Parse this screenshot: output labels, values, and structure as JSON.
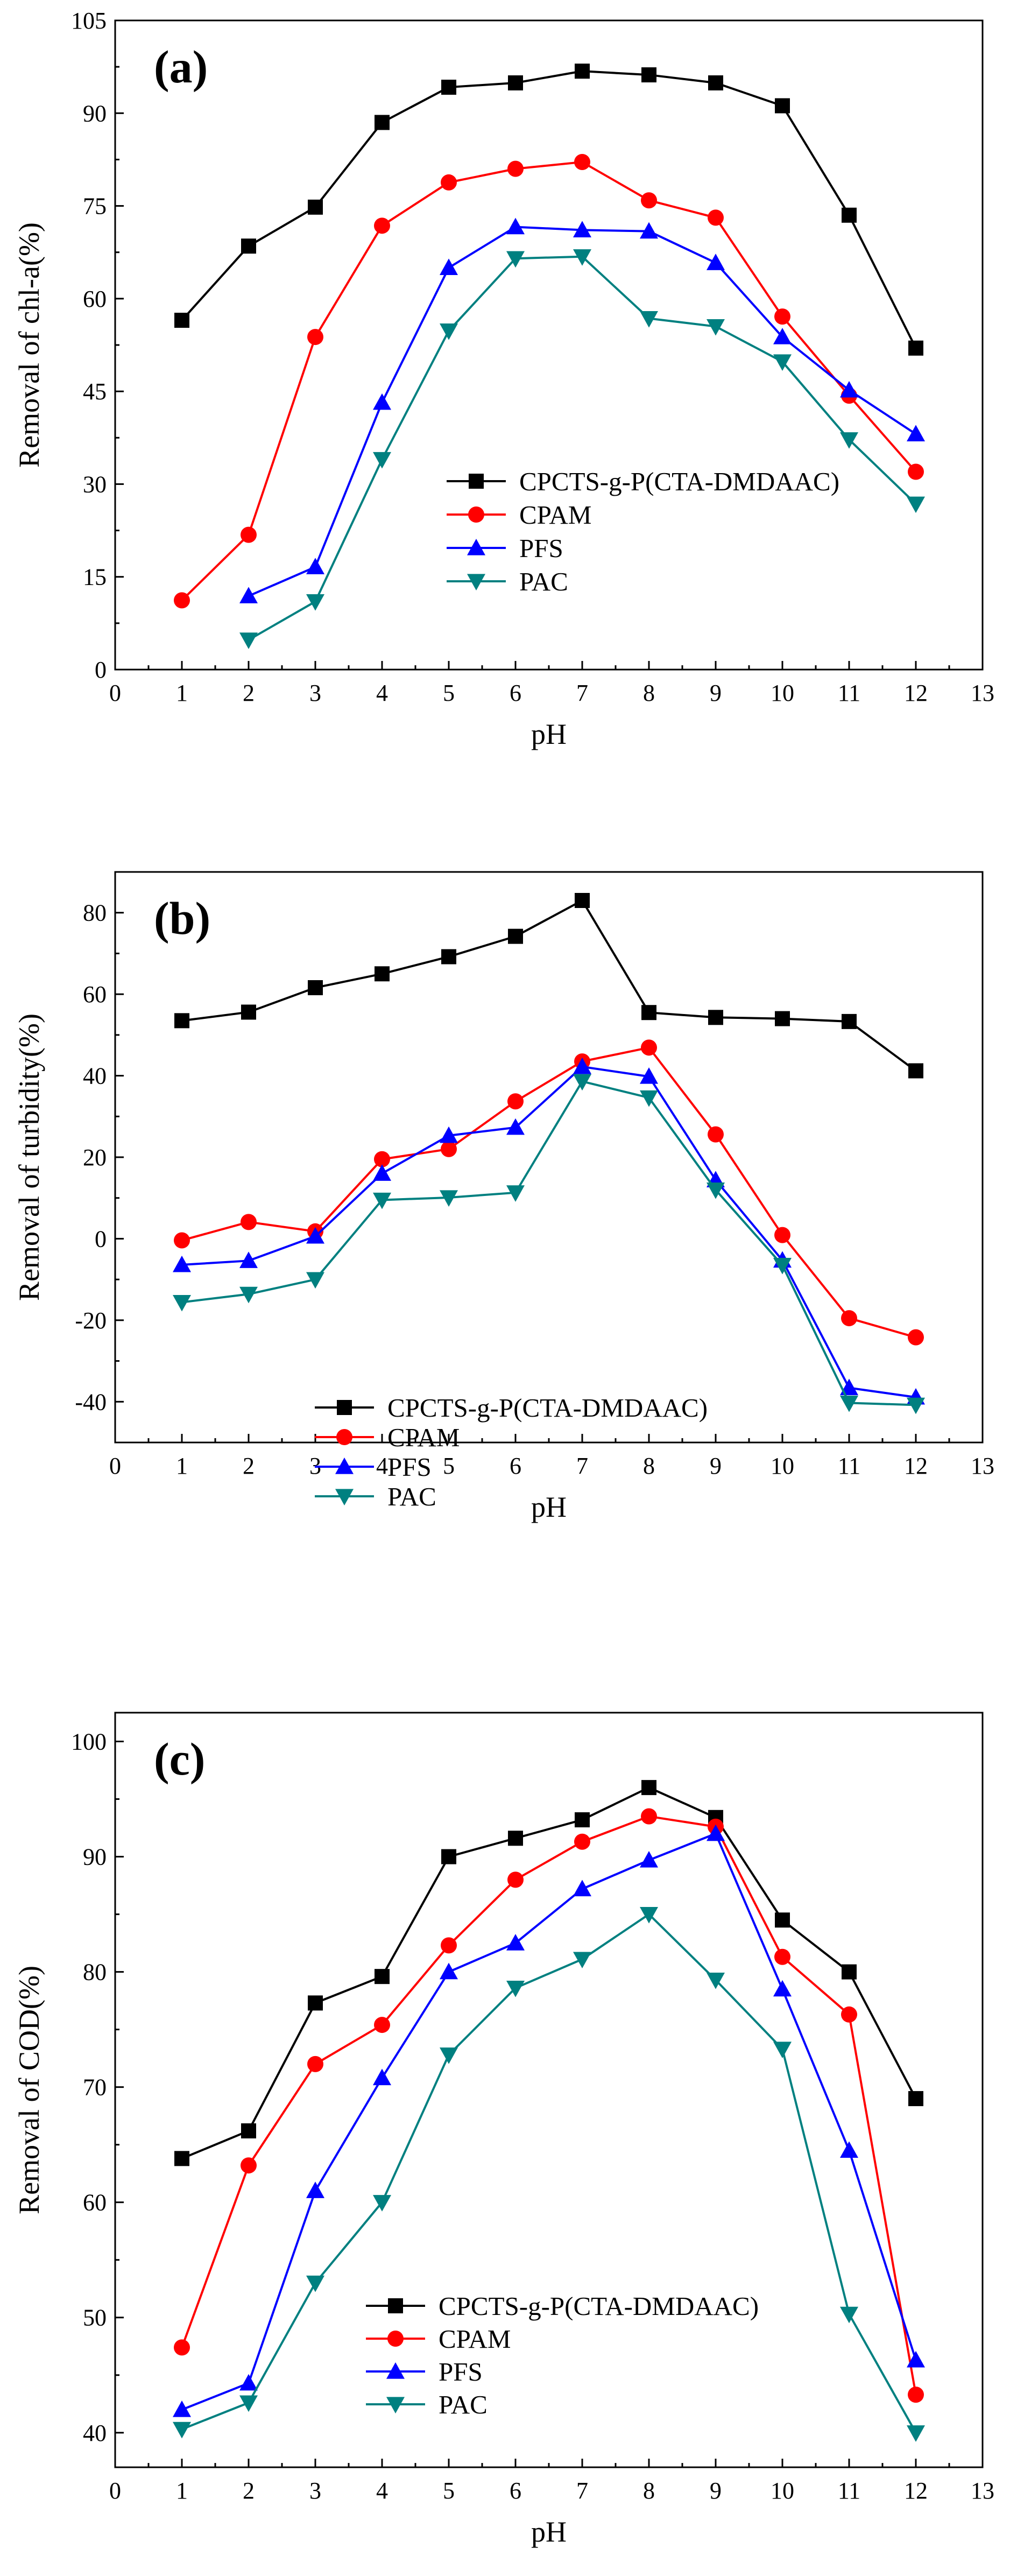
{
  "chart_data": [
    {
      "type": "line",
      "panel_label": "(a)",
      "xlabel": "pH",
      "ylabel": "Removal of chl-a(%)",
      "xlim": [
        0,
        13
      ],
      "ylim": [
        0,
        105
      ],
      "xticks": [
        0,
        1,
        2,
        3,
        4,
        5,
        6,
        7,
        8,
        9,
        10,
        11,
        12,
        13
      ],
      "yticks": [
        0,
        15,
        30,
        45,
        60,
        75,
        90,
        105
      ],
      "legend_position": "lower-center",
      "series": [
        {
          "name": "CPCTS-g-P(CTA-DMDAAC)",
          "color": "#000000",
          "marker": "square",
          "x": [
            1,
            2,
            3,
            4,
            5,
            6,
            7,
            8,
            9,
            10,
            11,
            12
          ],
          "y": [
            56.5,
            68.5,
            74.8,
            88.5,
            94.2,
            94.9,
            96.8,
            96.2,
            94.9,
            91.2,
            73.5,
            52.0
          ]
        },
        {
          "name": "CPAM",
          "color": "#ff0000",
          "marker": "circle",
          "x": [
            1,
            2,
            3,
            4,
            5,
            6,
            7,
            8,
            9,
            10,
            11,
            12
          ],
          "y": [
            11.2,
            21.8,
            53.8,
            71.8,
            78.8,
            81.0,
            82.1,
            75.9,
            73.1,
            57.1,
            44.3,
            32.0
          ]
        },
        {
          "name": "PFS",
          "color": "#0000ff",
          "marker": "triangle-up",
          "x": [
            2,
            3,
            4,
            5,
            6,
            7,
            8,
            9,
            10,
            11,
            12
          ],
          "y": [
            11.9,
            16.6,
            43.2,
            65.0,
            71.6,
            71.1,
            70.9,
            65.8,
            53.8,
            45.2,
            38.1
          ]
        },
        {
          "name": "PAC",
          "color": "#008080",
          "marker": "triangle-down",
          "x": [
            2,
            3,
            4,
            5,
            6,
            7,
            8,
            9,
            10,
            11,
            12
          ],
          "y": [
            4.8,
            11.0,
            34.0,
            54.8,
            66.5,
            66.8,
            56.8,
            55.5,
            49.8,
            37.2,
            26.8
          ]
        }
      ]
    },
    {
      "type": "line",
      "panel_label": "(b)",
      "xlabel": "pH",
      "ylabel": "Removal of turbidity(%)",
      "xlim": [
        0,
        13
      ],
      "ylim": [
        -50,
        90
      ],
      "xticks": [
        0,
        1,
        2,
        3,
        4,
        5,
        6,
        7,
        8,
        9,
        10,
        11,
        12,
        13
      ],
      "yticks": [
        -40,
        -20,
        0,
        20,
        40,
        60,
        80
      ],
      "legend_position": "lower-center",
      "series": [
        {
          "name": "CPCTS-g-P(CTA-DMDAAC)",
          "color": "#000000",
          "marker": "square",
          "x": [
            1,
            2,
            3,
            4,
            5,
            6,
            7,
            8,
            9,
            10,
            11,
            12
          ],
          "y": [
            53.5,
            55.6,
            61.6,
            65.0,
            69.2,
            74.2,
            83.0,
            55.5,
            54.3,
            54.0,
            53.3,
            41.2
          ]
        },
        {
          "name": "CPAM",
          "color": "#ff0000",
          "marker": "circle",
          "x": [
            1,
            2,
            3,
            4,
            5,
            6,
            7,
            8,
            9,
            10,
            11,
            12
          ],
          "y": [
            -0.4,
            4.1,
            1.8,
            19.5,
            22.0,
            33.7,
            43.5,
            46.9,
            25.6,
            0.9,
            -19.5,
            -24.2
          ]
        },
        {
          "name": "PFS",
          "color": "#0000ff",
          "marker": "triangle-up",
          "x": [
            1,
            2,
            3,
            4,
            5,
            6,
            7,
            8,
            9,
            10,
            11,
            12
          ],
          "y": [
            -6.4,
            -5.4,
            0.6,
            16.0,
            25.3,
            27.3,
            42.2,
            39.8,
            14.4,
            -5.3,
            -36.6,
            -38.9
          ]
        },
        {
          "name": "PAC",
          "color": "#008080",
          "marker": "triangle-down",
          "x": [
            1,
            2,
            3,
            4,
            5,
            6,
            7,
            8,
            9,
            10,
            11,
            12
          ],
          "y": [
            -15.6,
            -13.6,
            -10.0,
            9.5,
            10.1,
            11.3,
            38.6,
            34.6,
            12.0,
            -6.5,
            -40.3,
            -40.8
          ]
        }
      ]
    },
    {
      "type": "line",
      "panel_label": "(c)",
      "xlabel": "pH",
      "ylabel": "Removal of COD(%)",
      "xlim": [
        0,
        13
      ],
      "ylim": [
        37,
        102.5
      ],
      "xticks": [
        0,
        1,
        2,
        3,
        4,
        5,
        6,
        7,
        8,
        9,
        10,
        11,
        12,
        13
      ],
      "yticks": [
        40,
        50,
        60,
        70,
        80,
        90,
        100
      ],
      "legend_position": "lower-center",
      "series": [
        {
          "name": "CPCTS-g-P(CTA-DMDAAC)",
          "color": "#000000",
          "marker": "square",
          "x": [
            1,
            2,
            3,
            4,
            5,
            6,
            7,
            8,
            9,
            10,
            11,
            12
          ],
          "y": [
            63.8,
            66.2,
            77.3,
            79.6,
            90.0,
            91.6,
            93.2,
            96.0,
            93.4,
            84.5,
            80.0,
            69.0
          ]
        },
        {
          "name": "CPAM",
          "color": "#ff0000",
          "marker": "circle",
          "x": [
            1,
            2,
            3,
            4,
            5,
            6,
            7,
            8,
            9,
            10,
            11,
            12
          ],
          "y": [
            47.4,
            63.2,
            72.0,
            75.4,
            82.3,
            88.0,
            91.3,
            93.5,
            92.6,
            81.3,
            76.3,
            43.3
          ]
        },
        {
          "name": "PFS",
          "color": "#0000ff",
          "marker": "triangle-up",
          "x": [
            1,
            2,
            3,
            4,
            5,
            6,
            7,
            8,
            9,
            10,
            11,
            12
          ],
          "y": [
            42.0,
            44.3,
            61.0,
            70.8,
            80.0,
            82.5,
            87.2,
            89.7,
            92.0,
            78.5,
            64.5,
            46.3
          ]
        },
        {
          "name": "PAC",
          "color": "#008080",
          "marker": "triangle-down",
          "x": [
            1,
            2,
            3,
            4,
            5,
            6,
            7,
            8,
            9,
            10,
            11,
            12
          ],
          "y": [
            40.3,
            42.6,
            53.0,
            60.0,
            72.8,
            78.6,
            81.1,
            85.0,
            79.3,
            73.3,
            50.3,
            40.0
          ]
        }
      ]
    }
  ]
}
